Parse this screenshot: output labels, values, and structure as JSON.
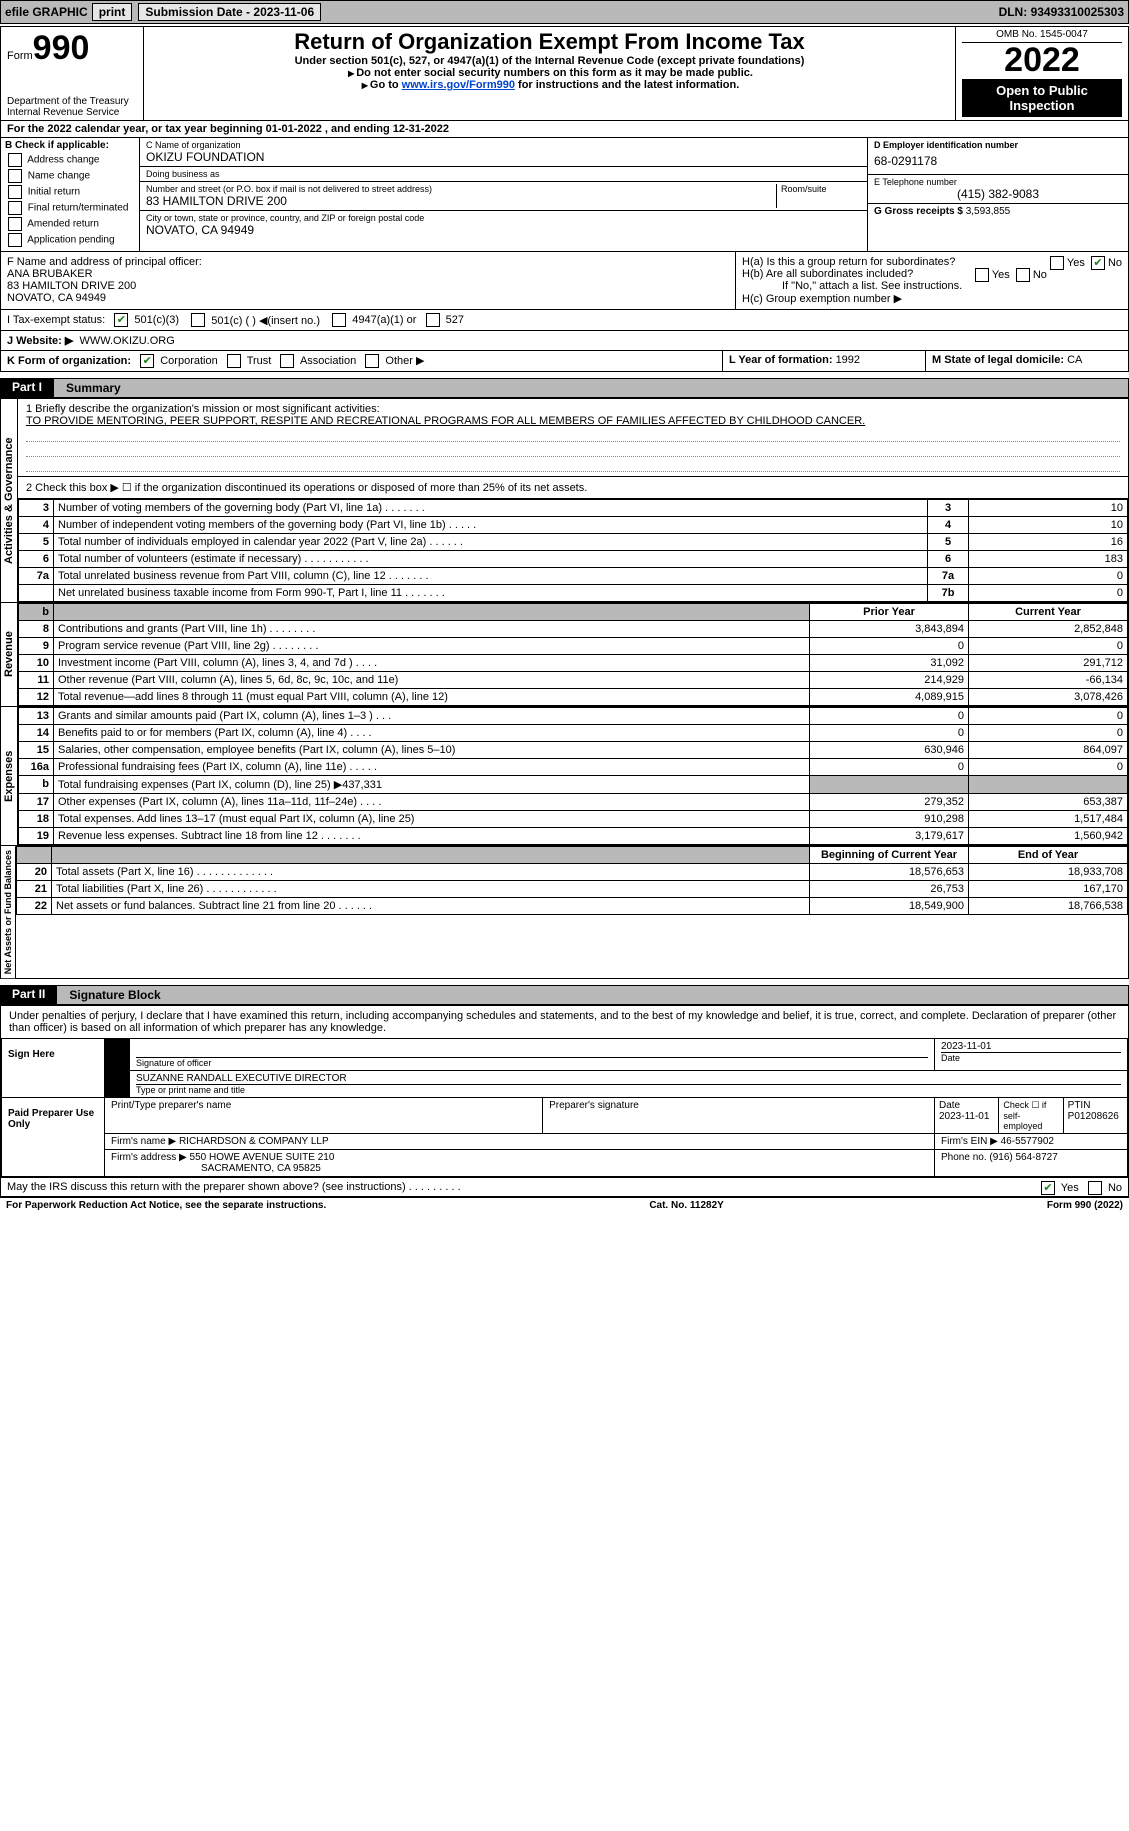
{
  "topbar": {
    "efile": "efile GRAPHIC",
    "print": "print",
    "subdate_label": "Submission Date - ",
    "subdate": "2023-11-06",
    "dln_label": "DLN: ",
    "dln": "93493310025303"
  },
  "header": {
    "form_word": "Form",
    "form_num": "990",
    "dept": "Department of the Treasury",
    "irs": "Internal Revenue Service",
    "title": "Return of Organization Exempt From Income Tax",
    "sub1": "Under section 501(c), 527, or 4947(a)(1) of the Internal Revenue Code (except private foundations)",
    "sub2": "Do not enter social security numbers on this form as it may be made public.",
    "sub3_pre": "Go to ",
    "sub3_link": "www.irs.gov/Form990",
    "sub3_post": " for instructions and the latest information.",
    "omb": "OMB No. 1545-0047",
    "year": "2022",
    "open": "Open to Public Inspection"
  },
  "lineA": "For the 2022 calendar year, or tax year beginning 01-01-2022    , and ending 12-31-2022",
  "boxB": {
    "title": "B Check if applicable:",
    "opts": [
      "Address change",
      "Name change",
      "Initial return",
      "Final return/terminated",
      "Amended return",
      "Application pending"
    ]
  },
  "boxC": {
    "name_hd": "C Name of organization",
    "name": "OKIZU FOUNDATION",
    "dba_hd": "Doing business as",
    "dba": "",
    "addr_hd": "Number and street (or P.O. box if mail is not delivered to street address)",
    "room_hd": "Room/suite",
    "addr": "83 HAMILTON DRIVE 200",
    "city_hd": "City or town, state or province, country, and ZIP or foreign postal code",
    "city": "NOVATO, CA  94949"
  },
  "boxD": {
    "hd": "D Employer identification number",
    "val": "68-0291178"
  },
  "boxE": {
    "hd": "E Telephone number",
    "val": "(415) 382-9083"
  },
  "boxG": {
    "hd": "G Gross receipts $ ",
    "val": "3,593,855"
  },
  "boxF": {
    "hd": "F  Name and address of principal officer:",
    "name": "ANA BRUBAKER",
    "addr1": "83 HAMILTON DRIVE 200",
    "addr2": "NOVATO, CA  94949"
  },
  "boxH": {
    "a": "H(a)  Is this a group return for subordinates?",
    "b": "H(b)  Are all subordinates included?",
    "bnote": "If \"No,\" attach a list. See instructions.",
    "c": "H(c)  Group exemption number ▶",
    "yes": "Yes",
    "no": "No"
  },
  "boxI": {
    "hd": "I    Tax-exempt status:",
    "o1": "501(c)(3)",
    "o2": "501(c) (  ) ◀(insert no.)",
    "o3": "4947(a)(1) or",
    "o4": "527"
  },
  "boxJ": {
    "hd": "J   Website: ▶",
    "val": "WWW.OKIZU.ORG"
  },
  "boxK": {
    "hd": "K Form of organization:",
    "opts": [
      "Corporation",
      "Trust",
      "Association",
      "Other ▶"
    ]
  },
  "boxL": {
    "hd": "L Year of formation: ",
    "val": "1992"
  },
  "boxM": {
    "hd": "M State of legal domicile: ",
    "val": "CA"
  },
  "part1": {
    "tab": "Part I",
    "title": "Summary"
  },
  "mission": {
    "q": "1   Briefly describe the organization's mission or most significant activities:",
    "a": "TO PROVIDE MENTORING, PEER SUPPORT, RESPITE AND RECREATIONAL PROGRAMS FOR ALL MEMBERS OF FAMILIES AFFECTED BY CHILDHOOD CANCER."
  },
  "line2": "2   Check this box ▶ ☐  if the organization discontinued its operations or disposed of more than 25% of its net assets.",
  "govRows": [
    {
      "n": "3",
      "t": "Number of voting members of the governing body (Part VI, line 1a)   .    .    .    .    .    .    .",
      "b": "3",
      "v": "10"
    },
    {
      "n": "4",
      "t": "Number of independent voting members of the governing body (Part VI, line 1b)   .    .    .    .    .",
      "b": "4",
      "v": "10"
    },
    {
      "n": "5",
      "t": "Total number of individuals employed in calendar year 2022 (Part V, line 2a)   .    .    .    .    .    .",
      "b": "5",
      "v": "16"
    },
    {
      "n": "6",
      "t": "Total number of volunteers (estimate if necessary)    .    .    .    .    .    .    .    .    .    .    .",
      "b": "6",
      "v": "183"
    },
    {
      "n": "7a",
      "t": "Total unrelated business revenue from Part VIII, column (C), line 12   .    .    .    .    .    .    .",
      "b": "7a",
      "v": "0"
    },
    {
      "n": "",
      "t": "Net unrelated business taxable income from Form 990-T, Part I, line 11   .    .    .    .    .    .    .",
      "b": "7b",
      "v": "0"
    }
  ],
  "colHdr": {
    "prior": "Prior Year",
    "curr": "Current Year"
  },
  "revRows": [
    {
      "n": "8",
      "t": "Contributions and grants (Part VIII, line 1h)    .    .    .    .    .    .    .    .",
      "p": "3,843,894",
      "c": "2,852,848"
    },
    {
      "n": "9",
      "t": "Program service revenue (Part VIII, line 2g)   .    .    .    .    .    .    .    .",
      "p": "0",
      "c": "0"
    },
    {
      "n": "10",
      "t": "Investment income (Part VIII, column (A), lines 3, 4, and 7d )    .    .    .    .",
      "p": "31,092",
      "c": "291,712"
    },
    {
      "n": "11",
      "t": "Other revenue (Part VIII, column (A), lines 5, 6d, 8c, 9c, 10c, and 11e)",
      "p": "214,929",
      "c": "-66,134"
    },
    {
      "n": "12",
      "t": "Total revenue—add lines 8 through 11 (must equal Part VIII, column (A), line 12)",
      "p": "4,089,915",
      "c": "3,078,426"
    }
  ],
  "expRows": [
    {
      "n": "13",
      "t": "Grants and similar amounts paid (Part IX, column (A), lines 1–3 )   .    .    .",
      "p": "0",
      "c": "0"
    },
    {
      "n": "14",
      "t": "Benefits paid to or for members (Part IX, column (A), line 4)   .    .    .    .",
      "p": "0",
      "c": "0"
    },
    {
      "n": "15",
      "t": "Salaries, other compensation, employee benefits (Part IX, column (A), lines 5–10)",
      "p": "630,946",
      "c": "864,097"
    },
    {
      "n": "16a",
      "t": "Professional fundraising fees (Part IX, column (A), line 11e)   .    .    .    .    .",
      "p": "0",
      "c": "0"
    },
    {
      "n": "b",
      "t": "Total fundraising expenses (Part IX, column (D), line 25) ▶437,331",
      "p": "shade",
      "c": "shade"
    },
    {
      "n": "17",
      "t": "Other expenses (Part IX, column (A), lines 11a–11d, 11f–24e)   .    .    .    .",
      "p": "279,352",
      "c": "653,387"
    },
    {
      "n": "18",
      "t": "Total expenses. Add lines 13–17 (must equal Part IX, column (A), line 25)",
      "p": "910,298",
      "c": "1,517,484"
    },
    {
      "n": "19",
      "t": "Revenue less expenses. Subtract line 18 from line 12   .    .    .    .    .    .    .",
      "p": "3,179,617",
      "c": "1,560,942"
    }
  ],
  "netHdr": {
    "b": "Beginning of Current Year",
    "e": "End of Year"
  },
  "netRows": [
    {
      "n": "20",
      "t": "Total assets (Part X, line 16)   .    .    .    .    .    .    .    .    .    .    .    .    .",
      "p": "18,576,653",
      "c": "18,933,708"
    },
    {
      "n": "21",
      "t": "Total liabilities (Part X, line 26)    .    .    .    .    .    .    .    .    .    .    .    .",
      "p": "26,753",
      "c": "167,170"
    },
    {
      "n": "22",
      "t": "Net assets or fund balances. Subtract line 21 from line 20   .    .    .    .    .    .",
      "p": "18,549,900",
      "c": "18,766,538"
    }
  ],
  "vtabs": {
    "gov": "Activities & Governance",
    "rev": "Revenue",
    "exp": "Expenses",
    "net": "Net Assets or Fund Balances"
  },
  "part2": {
    "tab": "Part II",
    "title": "Signature Block"
  },
  "sig": {
    "decl": "Under penalties of perjury, I declare that I have examined this return, including accompanying schedules and statements, and to the best of my knowledge and belief, it is true, correct, and complete. Declaration of preparer (other than officer) is based on all information of which preparer has any knowledge.",
    "signhere": "Sign Here",
    "sig_officer": "Signature of officer",
    "sig_date": "2023-11-01",
    "date_lbl": "Date",
    "officer_name": "SUZANNE RANDALL  EXECUTIVE DIRECTOR",
    "officer_lbl": "Type or print name and title",
    "paid": "Paid Preparer Use Only",
    "prep_name_hd": "Print/Type preparer's name",
    "prep_name": "",
    "prep_sig_hd": "Preparer's signature",
    "prep_date_hd": "Date",
    "prep_date": "2023-11-01",
    "self_emp": "Check ☐ if self-employed",
    "ptin_hd": "PTIN",
    "ptin": "P01208626",
    "firm_name_hd": "Firm's name    ▶",
    "firm_name": "RICHARDSON & COMPANY LLP",
    "firm_ein_hd": "Firm's EIN ▶",
    "firm_ein": "46-5577902",
    "firm_addr_hd": "Firm's address ▶",
    "firm_addr1": "550 HOWE AVENUE SUITE 210",
    "firm_addr2": "SACRAMENTO, CA  95825",
    "phone_hd": "Phone no. ",
    "phone": "(916) 564-8727",
    "may_irs": "May the IRS discuss this return with the preparer shown above? (see instructions)    .    .    .    .    .    .    .    .    .",
    "yes": "Yes",
    "no": "No"
  },
  "footer": {
    "pra": "For Paperwork Reduction Act Notice, see the separate instructions.",
    "cat": "Cat. No. 11282Y",
    "form": "Form 990 (2022)"
  }
}
